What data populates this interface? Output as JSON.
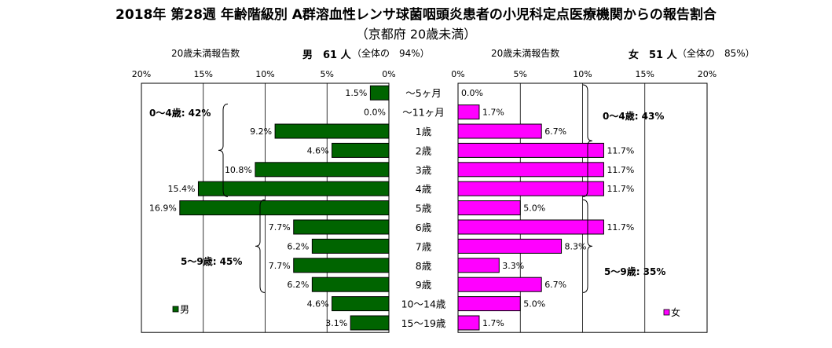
{
  "title": "2018年 第28週 年齢階級別 A群溶血性レンサ球菌咽頭炎患者の小児科定点医療機関からの報告割合",
  "subtitle": "（京都府 20歳未満）",
  "male_header": {
    "count_label": "20歳未満報告数",
    "sex_count": "男　61 人",
    "share": "（全体の　94%）"
  },
  "female_header": {
    "count_label": "20歳未満報告数",
    "sex_count": "女　51 人",
    "share": "（全体の　85%）"
  },
  "colors": {
    "male": "#006400",
    "female": "#ff00ff"
  },
  "chart_data": [
    {
      "type": "bar",
      "orientation": "horizontal",
      "direction": "right-to-left",
      "categories": [
        "～5ヶ月",
        "～11ヶ月",
        "1歳",
        "2歳",
        "3歳",
        "4歳",
        "5歳",
        "6歳",
        "7歳",
        "8歳",
        "9歳",
        "10～14歳",
        "15～19歳"
      ],
      "series": [
        {
          "name": "男",
          "values": [
            1.5,
            0.0,
            9.2,
            4.6,
            10.8,
            15.4,
            16.9,
            7.7,
            6.2,
            7.7,
            6.2,
            4.6,
            3.1
          ],
          "value_labels": [
            "1.5%",
            "0.0%",
            "9.2%",
            "4.6%",
            "10.8%",
            "15.4%",
            "16.9%",
            "7.7%",
            "6.2%",
            "7.7%",
            "6.2%",
            "4.6%",
            "3.1%"
          ]
        }
      ],
      "xlim": [
        0,
        20
      ],
      "x_ticks": [
        "20%",
        "15%",
        "10%",
        "5%",
        "0%"
      ],
      "legend": "bottom-left",
      "grid": true,
      "annotations": [
        {
          "text": "0～4歳: 42%",
          "categories": [
            "～11ヶ月",
            "1歳",
            "2歳",
            "3歳",
            "4歳"
          ]
        },
        {
          "text": "5～9歳: 45%",
          "categories": [
            "5歳",
            "6歳",
            "7歳",
            "8歳",
            "9歳"
          ]
        }
      ]
    },
    {
      "type": "bar",
      "orientation": "horizontal",
      "direction": "left-to-right",
      "categories": [
        "～5ヶ月",
        "～11ヶ月",
        "1歳",
        "2歳",
        "3歳",
        "4歳",
        "5歳",
        "6歳",
        "7歳",
        "8歳",
        "9歳",
        "10～14歳",
        "15～19歳"
      ],
      "series": [
        {
          "name": "女",
          "values": [
            0.0,
            1.7,
            6.7,
            11.7,
            11.7,
            11.7,
            5.0,
            11.7,
            8.3,
            3.3,
            6.7,
            5.0,
            1.7
          ],
          "value_labels": [
            "0.0%",
            "1.7%",
            "6.7%",
            "11.7%",
            "11.7%",
            "11.7%",
            "5.0%",
            "11.7%",
            "8.3%",
            "3.3%",
            "6.7%",
            "5.0%",
            "1.7%"
          ]
        }
      ],
      "xlim": [
        0,
        20
      ],
      "x_ticks": [
        "0%",
        "5%",
        "10%",
        "15%",
        "20%"
      ],
      "legend": "bottom-right",
      "grid": true,
      "annotations": [
        {
          "text": "0～4歳: 43%",
          "categories": [
            "～5ヶ月",
            "～11ヶ月",
            "1歳",
            "2歳",
            "3歳",
            "4歳"
          ]
        },
        {
          "text": "5～9歳: 35%",
          "categories": [
            "5歳",
            "6歳",
            "7歳",
            "8歳",
            "9歳"
          ]
        }
      ]
    }
  ]
}
